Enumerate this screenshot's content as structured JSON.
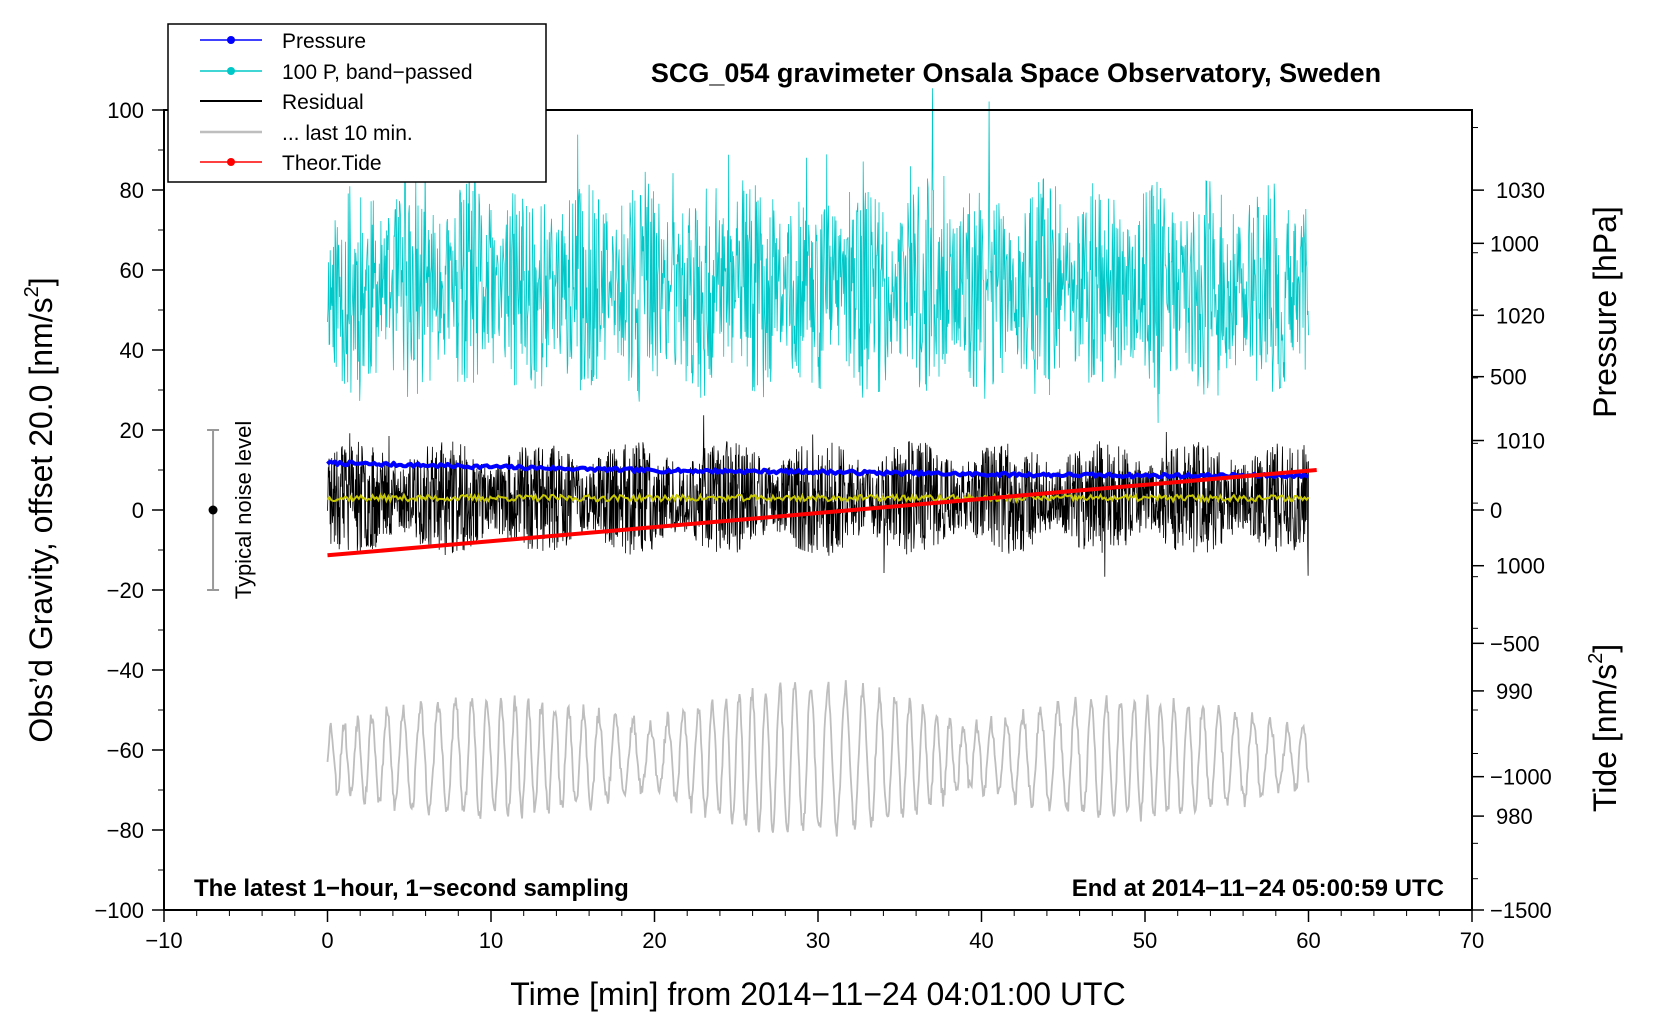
{
  "chart_data": {
    "type": "line",
    "title": "SCG_054 gravimeter Onsala Space Observatory, Sweden",
    "xlabel": "Time [min] from 2014−11−24 04:01:00 UTC",
    "ylabel_main": "Obs’d Gravity, offset 20.0 [nm/s",
    "ylabel_main_sup": "2",
    "ylabel_main_end": "]",
    "ylabel_pressure": "Pressure [hPa]",
    "ylabel_tide": "Tide [nm/s",
    "ylabel_tide_sup": "2",
    "ylabel_tide_end": "]",
    "xlim": [
      -10,
      70
    ],
    "ylim": [
      -100,
      100
    ],
    "pressure_lim": [
      972.5,
      1036.4
    ],
    "tide_lim": [
      -1500,
      1500
    ],
    "x_ticks": [
      -10,
      0,
      10,
      20,
      30,
      40,
      50,
      60,
      70
    ],
    "x_tick_labels": [
      "−10",
      "0",
      "10",
      "20",
      "30",
      "40",
      "50",
      "60",
      "70"
    ],
    "y_ticks": [
      -100,
      -80,
      -60,
      -40,
      -20,
      0,
      20,
      40,
      60,
      80,
      100
    ],
    "y_tick_labels": [
      "−100",
      "−80",
      "−60",
      "−40",
      "−20",
      "0",
      "20",
      "40",
      "60",
      "80",
      "100"
    ],
    "pressure_ticks": [
      980,
      990,
      1000,
      1010,
      1020,
      1030
    ],
    "pressure_tick_labels": [
      "980",
      "990",
      "1000",
      "1010",
      "1020",
      "1030"
    ],
    "tide_ticks": [
      -1500,
      -1000,
      -500,
      0,
      500,
      1000
    ],
    "tide_tick_labels": [
      "−1500",
      "−1000",
      "−500",
      "0",
      "500",
      "1000"
    ],
    "legend": [
      {
        "label": "Pressure",
        "color": "#0000ff",
        "marker": true
      },
      {
        "label": "100 P, band−passed",
        "color": "#00c8c8",
        "marker": true
      },
      {
        "label": "Residual",
        "color": "#000000",
        "marker": false
      },
      {
        "label": "... last 10 min.",
        "color": "#bebebe",
        "marker": false
      },
      {
        "label": "Theor.Tide",
        "color": "#ff0000",
        "marker": true
      }
    ],
    "annotations": {
      "left": "The latest 1−hour, 1−second sampling",
      "right": "End at 2014−11−24 05:00:59 UTC",
      "noise": "Typical noise level"
    },
    "noise_bar": {
      "x": -7,
      "center": 0,
      "low": -20,
      "high": 20
    },
    "series": [
      {
        "name": "Pressure",
        "axis": "pressure",
        "color": "#0000ff",
        "x": [
          0,
          10,
          20,
          30,
          40,
          50,
          60
        ],
        "values": [
          1008.2,
          1007.9,
          1007.6,
          1007.5,
          1007.3,
          1007.2,
          1007.2
        ]
      },
      {
        "name": "100 P, band−passed",
        "axis": "main",
        "color": "#00c8c8",
        "x_range": [
          0,
          60
        ],
        "center": 55,
        "amplitude": 20,
        "seed": 11
      },
      {
        "name": "Residual",
        "axis": "main",
        "color": "#000000",
        "x_range": [
          0,
          60
        ],
        "center": 3,
        "amplitude": 10,
        "seed": 23
      },
      {
        "name": "Residual smoothed",
        "axis": "main",
        "color": "#c8c800",
        "x_range": [
          0,
          60
        ],
        "center": 3,
        "amplitude": 0.8,
        "seed": 37
      },
      {
        "name": "... last 10 min.",
        "axis": "main",
        "color": "#bebebe",
        "x_range": [
          0,
          60
        ],
        "center": -62,
        "amplitude": 11,
        "seed": 53
      },
      {
        "name": "Theor.Tide",
        "axis": "tide",
        "color": "#ff0000",
        "x": [
          0,
          60.5
        ],
        "values": [
          -170,
          150
        ]
      }
    ]
  }
}
